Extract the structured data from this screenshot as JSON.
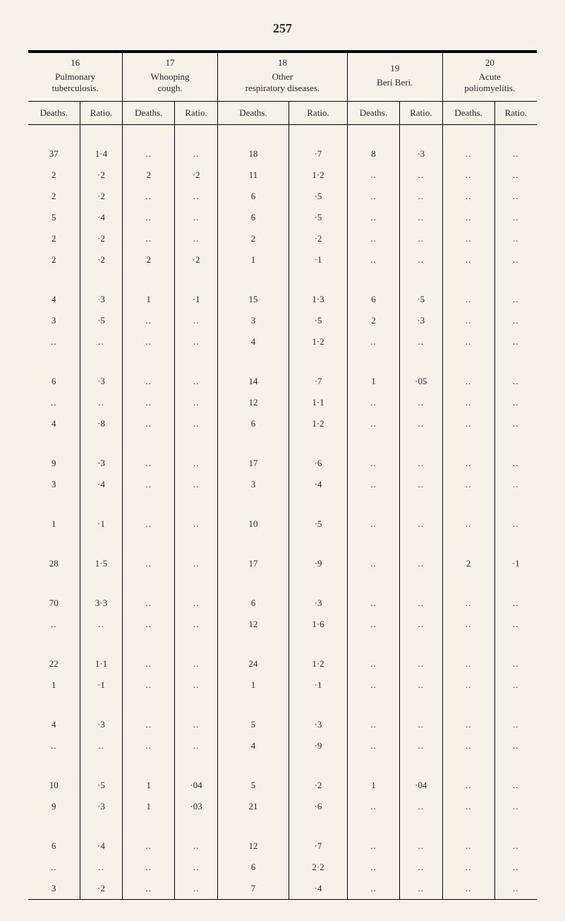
{
  "page_number": "257",
  "columns": [
    {
      "number": "16",
      "title": "Pulmonary tuberculosis."
    },
    {
      "number": "17",
      "title": "Whooping cough."
    },
    {
      "number": "18",
      "title": "Other respiratory diseases."
    },
    {
      "number": "19",
      "title": "Beri Beri."
    },
    {
      "number": "20",
      "title": "Acute poliomyelitis."
    }
  ],
  "sub_headers": [
    "Deaths.",
    "Ratio.",
    "Deaths.",
    "Ratio.",
    "Deaths.",
    "Ratio.",
    "Deaths.",
    "Ratio.",
    "Deaths.",
    "Ratio."
  ],
  "groups": [
    [
      [
        "37",
        "1·4",
        "..",
        "..",
        "18",
        "·7",
        "8",
        "·3",
        "..",
        ".."
      ],
      [
        "2",
        "·2",
        "2",
        "·2",
        "11",
        "1·2",
        "..",
        "..",
        "..",
        ".."
      ],
      [
        "2",
        "·2",
        "..",
        "..",
        "6",
        "·5",
        "..",
        "..",
        "..",
        ".."
      ],
      [
        "5",
        "·4",
        "..",
        "..",
        "6",
        "·5",
        "..",
        "..",
        "..",
        ".."
      ],
      [
        "2",
        "·2",
        "..",
        "..",
        "2",
        "·2",
        "..",
        "..",
        "..",
        ".."
      ],
      [
        "2",
        "·2",
        "2",
        "·2",
        "1",
        "·1",
        "..",
        "..",
        "..",
        ".."
      ]
    ],
    [
      [
        "4",
        "·3",
        "1",
        "·1",
        "15",
        "1·3",
        "6",
        "·5",
        "..",
        ".."
      ],
      [
        "3",
        "·5",
        "..",
        "..",
        "3",
        "·5",
        "2",
        "·3",
        "..",
        ".."
      ],
      [
        "..",
        "..",
        "..",
        "..",
        "4",
        "1·2",
        "..",
        "..",
        "..",
        ".."
      ]
    ],
    [
      [
        "6",
        "·3",
        "..",
        "..",
        "14",
        "·7",
        "1",
        "·05",
        "..",
        ".."
      ],
      [
        "..",
        "..",
        "..",
        "..",
        "12",
        "1·1",
        "..",
        "..",
        "..",
        ".."
      ],
      [
        "4",
        "·8",
        "..",
        "..",
        "6",
        "1·2",
        "..",
        "..",
        "..",
        ".."
      ]
    ],
    [
      [
        "9",
        "·3",
        "..",
        "..",
        "17",
        "·6",
        "..",
        "..",
        "..",
        ".."
      ],
      [
        "3",
        "·4",
        "..",
        "..",
        "3",
        "·4",
        "..",
        "..",
        "..",
        ".."
      ]
    ],
    [
      [
        "1",
        "·1",
        "..",
        "..",
        "10",
        "·5",
        "..",
        "..",
        "..",
        ".."
      ]
    ],
    [
      [
        "28",
        "1·5",
        "..",
        "..",
        "17",
        "·9",
        "..",
        "..",
        "2",
        "·1"
      ]
    ],
    [
      [
        "70",
        "3·3",
        "..",
        "..",
        "6",
        "·3",
        "..",
        "..",
        "..",
        ".."
      ],
      [
        "..",
        "..",
        "..",
        "..",
        "12",
        "1·6",
        "..",
        "..",
        "..",
        ".."
      ]
    ],
    [
      [
        "22",
        "1·1",
        "..",
        "..",
        "24",
        "1·2",
        "..",
        "..",
        "..",
        ".."
      ],
      [
        "1",
        "·1",
        "..",
        "..",
        "1",
        "·1",
        "..",
        "..",
        "..",
        ".."
      ]
    ],
    [
      [
        "4",
        "·3",
        "..",
        "..",
        "5",
        "·3",
        "..",
        "..",
        "..",
        ".."
      ],
      [
        "..",
        "..",
        "..",
        "..",
        "4",
        "·9",
        "..",
        "..",
        "..",
        ".."
      ]
    ],
    [
      [
        "10",
        "·5",
        "1",
        "·04",
        "5",
        "·2",
        "1",
        "·04",
        "..",
        ".."
      ],
      [
        "9",
        "·3",
        "1",
        "·03",
        "21",
        "·6",
        "..",
        "..",
        "..",
        ".."
      ]
    ],
    [
      [
        "6",
        "·4",
        "..",
        "..",
        "12",
        "·7",
        "..",
        "..",
        "..",
        ".."
      ],
      [
        "..",
        "..",
        "..",
        "..",
        "6",
        "2·2",
        "..",
        "..",
        "..",
        ".."
      ],
      [
        "3",
        "·2",
        "..",
        "..",
        "7",
        "·4",
        "..",
        "..",
        "..",
        ".."
      ]
    ]
  ]
}
